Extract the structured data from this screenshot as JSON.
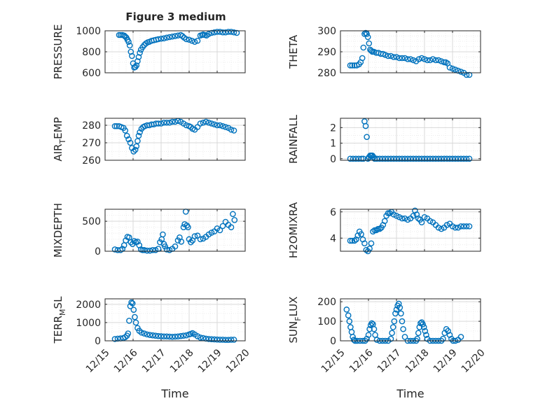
{
  "figure_title": "Figure 3 medium",
  "time_axis": {
    "label": "Time",
    "domain": [
      0,
      5
    ],
    "ticks": [
      0,
      1,
      2,
      3,
      4,
      5
    ],
    "tick_labels": [
      "12/15",
      "12/16",
      "12/17",
      "12/18",
      "12/19",
      "12/20"
    ]
  },
  "style": {
    "marker_color": "#0072BD",
    "grid_color": "#cfcfcf",
    "axis_color": "#262626"
  },
  "chart_data": [
    {
      "type": "scatter",
      "key": "pressure",
      "ylabel": "PRESSURE",
      "ylim": [
        600,
        1000
      ],
      "yticks": [
        600,
        800,
        1000
      ],
      "yminor": [
        700,
        900
      ],
      "x": [
        0.5,
        0.56,
        0.62,
        0.68,
        0.72,
        0.76,
        0.8,
        0.84,
        0.88,
        0.92,
        0.96,
        1.0,
        1.04,
        1.08,
        1.12,
        1.16,
        1.2,
        1.24,
        1.28,
        1.34,
        1.4,
        1.46,
        1.52,
        1.58,
        1.66,
        1.74,
        1.82,
        1.9,
        2.0,
        2.1,
        2.2,
        2.3,
        2.4,
        2.5,
        2.6,
        2.7,
        2.76,
        2.82,
        2.9,
        3.0,
        3.1,
        3.2,
        3.3,
        3.4,
        3.46,
        3.5,
        3.56,
        3.62,
        3.7,
        3.8,
        3.9,
        4.0,
        4.1,
        4.2,
        4.3,
        4.4,
        4.5,
        4.6,
        4.7
      ],
      "y": [
        960,
        960,
        960,
        955,
        945,
        935,
        915,
        895,
        860,
        800,
        760,
        690,
        650,
        655,
        670,
        710,
        750,
        790,
        820,
        845,
        865,
        880,
        890,
        895,
        905,
        910,
        915,
        920,
        925,
        928,
        935,
        940,
        945,
        950,
        955,
        960,
        950,
        935,
        920,
        915,
        905,
        895,
        905,
        955,
        960,
        965,
        960,
        955,
        970,
        980,
        985,
        990,
        990,
        985,
        985,
        990,
        990,
        985,
        980
      ]
    },
    {
      "type": "scatter",
      "key": "theta",
      "ylabel": "THETA",
      "ylim": [
        280,
        300
      ],
      "yticks": [
        280,
        290,
        300
      ],
      "yminor": [
        282.5,
        285,
        287.5,
        292.5,
        295,
        297.5
      ],
      "x": [
        0.35,
        0.42,
        0.5,
        0.58,
        0.66,
        0.72,
        0.78,
        0.82,
        0.86,
        0.9,
        0.94,
        0.98,
        1.02,
        1.06,
        1.1,
        1.14,
        1.2,
        1.28,
        1.36,
        1.44,
        1.52,
        1.6,
        1.7,
        1.8,
        1.9,
        2.0,
        2.1,
        2.2,
        2.3,
        2.4,
        2.5,
        2.6,
        2.7,
        2.8,
        2.9,
        3.0,
        3.1,
        3.2,
        3.3,
        3.4,
        3.5,
        3.6,
        3.7,
        3.76,
        3.82,
        3.9,
        4.0,
        4.1,
        4.2,
        4.3,
        4.4,
        4.5,
        4.6
      ],
      "y": [
        283.5,
        283.5,
        283.5,
        283.5,
        284,
        285,
        287,
        292,
        298.5,
        299,
        298.5,
        297,
        294,
        291,
        290.5,
        290,
        290,
        289.5,
        289.5,
        289,
        289,
        288.5,
        288,
        288,
        287.5,
        287.5,
        287,
        287,
        287,
        286.5,
        286.5,
        286,
        285.5,
        286.5,
        287,
        286.5,
        286,
        286,
        286.5,
        286,
        286,
        285.5,
        285,
        285,
        284.5,
        282.5,
        282,
        281.5,
        281,
        280.5,
        280,
        279,
        279
      ]
    },
    {
      "type": "scatter",
      "key": "air_temp",
      "ylabel": "AIR_TEMP",
      "ylim": [
        260,
        284
      ],
      "yticks": [
        260,
        270,
        280
      ],
      "yminor": [
        265,
        275
      ],
      "x": [
        0.35,
        0.42,
        0.5,
        0.58,
        0.66,
        0.72,
        0.78,
        0.84,
        0.9,
        0.96,
        1.02,
        1.08,
        1.12,
        1.16,
        1.2,
        1.24,
        1.3,
        1.36,
        1.42,
        1.5,
        1.58,
        1.66,
        1.74,
        1.82,
        1.9,
        2.0,
        2.1,
        2.2,
        2.3,
        2.4,
        2.5,
        2.6,
        2.7,
        2.8,
        2.9,
        3.0,
        3.06,
        3.12,
        3.2,
        3.3,
        3.4,
        3.5,
        3.6,
        3.7,
        3.8,
        3.9,
        4.0,
        4.1,
        4.2,
        4.3,
        4.4,
        4.5,
        4.6
      ],
      "y": [
        279.5,
        279.5,
        279.5,
        279,
        278.5,
        277,
        274,
        272,
        270,
        267,
        265,
        266,
        268,
        271,
        274,
        276,
        278,
        279,
        279.5,
        280,
        280,
        280.5,
        280.5,
        281,
        281,
        281,
        281.5,
        281.5,
        281.5,
        282,
        282,
        282.5,
        282,
        281,
        280,
        279.5,
        279,
        278,
        277.5,
        279,
        281,
        281.5,
        282,
        281.5,
        281,
        280.5,
        280,
        280,
        279.5,
        279,
        278.5,
        277.5,
        277
      ]
    },
    {
      "type": "scatter",
      "key": "rainfall",
      "ylabel": "RAINFALL",
      "ylim": [
        -0.1,
        2.6
      ],
      "yticks": [
        0,
        1,
        2
      ],
      "yminor": [
        0.5,
        1.5
      ],
      "x": [
        0.35,
        0.45,
        0.55,
        0.65,
        0.75,
        0.82,
        0.86,
        0.9,
        0.94,
        0.98,
        1.02,
        1.06,
        1.1,
        1.14,
        1.18,
        1.22,
        1.3,
        1.4,
        1.5,
        1.6,
        1.7,
        1.8,
        1.9,
        2.0,
        2.1,
        2.2,
        2.3,
        2.4,
        2.5,
        2.6,
        2.7,
        2.8,
        2.9,
        3.0,
        3.1,
        3.2,
        3.3,
        3.4,
        3.5,
        3.6,
        3.7,
        3.8,
        3.9,
        4.0,
        4.1,
        4.2,
        4.3,
        4.4,
        4.5,
        4.6
      ],
      "y": [
        0,
        0,
        0,
        0,
        0,
        0,
        2.4,
        2.1,
        1.4,
        0,
        0.1,
        0.2,
        0.2,
        0.2,
        0.1,
        0,
        0,
        0,
        0,
        0,
        0,
        0,
        0,
        0,
        0,
        0,
        0,
        0,
        0,
        0,
        0,
        0,
        0,
        0,
        0,
        0,
        0,
        0,
        0,
        0,
        0,
        0,
        0,
        0,
        0,
        0,
        0,
        0,
        0,
        0
      ]
    },
    {
      "type": "scatter",
      "key": "mixdepth",
      "ylabel": "MIXDEPTH",
      "ylim": [
        0,
        700
      ],
      "yticks": [
        0,
        500
      ],
      "yminor": [
        100,
        200,
        300,
        400,
        600
      ],
      "x": [
        0.35,
        0.45,
        0.55,
        0.62,
        0.68,
        0.74,
        0.8,
        0.86,
        0.92,
        0.98,
        1.04,
        1.1,
        1.16,
        1.22,
        1.28,
        1.34,
        1.4,
        1.5,
        1.6,
        1.7,
        1.8,
        1.9,
        1.96,
        2.02,
        2.06,
        2.1,
        2.14,
        2.2,
        2.3,
        2.4,
        2.5,
        2.6,
        2.66,
        2.72,
        2.8,
        2.84,
        2.88,
        2.92,
        2.96,
        3.0,
        3.06,
        3.12,
        3.2,
        3.3,
        3.4,
        3.5,
        3.6,
        3.7,
        3.8,
        3.9,
        4.0,
        4.1,
        4.2,
        4.3,
        4.4,
        4.5,
        4.56,
        4.62
      ],
      "y": [
        30,
        20,
        20,
        40,
        100,
        180,
        240,
        230,
        150,
        120,
        170,
        150,
        160,
        100,
        30,
        20,
        20,
        10,
        10,
        20,
        20,
        40,
        150,
        200,
        280,
        120,
        80,
        30,
        20,
        40,
        80,
        180,
        230,
        160,
        400,
        450,
        660,
        430,
        400,
        200,
        150,
        180,
        250,
        260,
        200,
        210,
        240,
        280,
        310,
        330,
        380,
        350,
        420,
        490,
        440,
        400,
        620,
        520
      ]
    },
    {
      "type": "scatter",
      "key": "h2omixra",
      "ylabel": "H2OMIXRA",
      "ylim": [
        3,
        6.2
      ],
      "yticks": [
        4,
        6
      ],
      "yminor": [
        3.5,
        4.5,
        5,
        5.5
      ],
      "x": [
        0.35,
        0.42,
        0.5,
        0.56,
        0.62,
        0.68,
        0.74,
        0.8,
        0.86,
        0.92,
        0.98,
        1.04,
        1.1,
        1.16,
        1.22,
        1.28,
        1.34,
        1.4,
        1.46,
        1.52,
        1.58,
        1.64,
        1.7,
        1.76,
        1.82,
        1.9,
        2.0,
        2.1,
        2.2,
        2.3,
        2.4,
        2.5,
        2.6,
        2.66,
        2.72,
        2.78,
        2.84,
        2.9,
        3.0,
        3.1,
        3.2,
        3.3,
        3.4,
        3.5,
        3.6,
        3.7,
        3.8,
        3.9,
        4.0,
        4.1,
        4.2,
        4.3,
        4.4,
        4.5,
        4.6
      ],
      "y": [
        3.8,
        3.8,
        3.8,
        3.9,
        4.2,
        4.5,
        4.3,
        3.9,
        3.6,
        3.1,
        3.0,
        3.2,
        3.6,
        4.5,
        4.6,
        4.6,
        4.7,
        4.7,
        4.8,
        5.0,
        5.3,
        5.7,
        5.9,
        5.9,
        6.0,
        5.8,
        5.7,
        5.6,
        5.5,
        5.5,
        5.4,
        5.5,
        5.7,
        6.1,
        5.8,
        5.5,
        5.4,
        5.2,
        5.6,
        5.5,
        5.3,
        5.2,
        5.0,
        4.8,
        4.7,
        4.8,
        5.0,
        5.1,
        4.9,
        4.8,
        4.8,
        4.9,
        4.9,
        4.9,
        4.9
      ]
    },
    {
      "type": "scatter",
      "key": "terr_msl",
      "ylabel": "TERR_MSL",
      "ylim": [
        0,
        2300
      ],
      "yticks": [
        0,
        1000,
        2000
      ],
      "yminor": [
        500,
        1500
      ],
      "x": [
        0.35,
        0.45,
        0.55,
        0.65,
        0.72,
        0.78,
        0.82,
        0.86,
        0.9,
        0.94,
        0.98,
        1.02,
        1.06,
        1.1,
        1.16,
        1.22,
        1.3,
        1.4,
        1.5,
        1.6,
        1.7,
        1.8,
        1.9,
        2.0,
        2.1,
        2.2,
        2.3,
        2.4,
        2.5,
        2.6,
        2.7,
        2.8,
        2.9,
        3.0,
        3.06,
        3.12,
        3.2,
        3.3,
        3.4,
        3.5,
        3.6,
        3.7,
        3.8,
        3.9,
        4.0,
        4.1,
        4.2,
        4.3,
        4.4,
        4.5,
        4.6
      ],
      "y": [
        100,
        120,
        130,
        150,
        200,
        280,
        400,
        1100,
        1900,
        2100,
        2050,
        1700,
        1300,
        1000,
        700,
        550,
        450,
        400,
        350,
        320,
        300,
        280,
        260,
        250,
        240,
        240,
        230,
        220,
        230,
        240,
        260,
        280,
        300,
        350,
        380,
        420,
        350,
        250,
        180,
        150,
        120,
        100,
        90,
        80,
        70,
        60,
        60,
        50,
        50,
        60,
        60
      ]
    },
    {
      "type": "scatter",
      "key": "sun_flux",
      "ylabel": "SUN_FLUX",
      "ylim": [
        0,
        215
      ],
      "yticks": [
        0,
        100,
        200
      ],
      "yminor": [
        50,
        150
      ],
      "x": [
        0.22,
        0.28,
        0.32,
        0.36,
        0.4,
        0.44,
        0.48,
        0.52,
        0.6,
        0.7,
        0.8,
        0.88,
        0.94,
        1.0,
        1.04,
        1.08,
        1.12,
        1.16,
        1.2,
        1.24,
        1.3,
        1.4,
        1.5,
        1.6,
        1.7,
        1.8,
        1.84,
        1.88,
        1.92,
        1.96,
        2.0,
        2.04,
        2.08,
        2.12,
        2.16,
        2.2,
        2.24,
        2.3,
        2.4,
        2.5,
        2.6,
        2.7,
        2.74,
        2.78,
        2.82,
        2.86,
        2.9,
        2.94,
        2.98,
        3.02,
        3.06,
        3.1,
        3.2,
        3.3,
        3.4,
        3.5,
        3.6,
        3.66,
        3.72,
        3.78,
        3.84,
        3.9,
        3.96,
        4.02,
        4.1,
        4.2,
        4.3
      ],
      "y": [
        160,
        130,
        100,
        70,
        45,
        20,
        5,
        0,
        0,
        0,
        0,
        0,
        10,
        30,
        60,
        80,
        90,
        85,
        60,
        30,
        5,
        0,
        0,
        0,
        0,
        10,
        40,
        70,
        100,
        140,
        160,
        180,
        190,
        170,
        140,
        100,
        60,
        20,
        0,
        0,
        0,
        0,
        10,
        40,
        70,
        90,
        95,
        85,
        70,
        50,
        30,
        10,
        0,
        0,
        0,
        0,
        0,
        10,
        40,
        60,
        50,
        30,
        10,
        0,
        0,
        5,
        20
      ]
    }
  ]
}
